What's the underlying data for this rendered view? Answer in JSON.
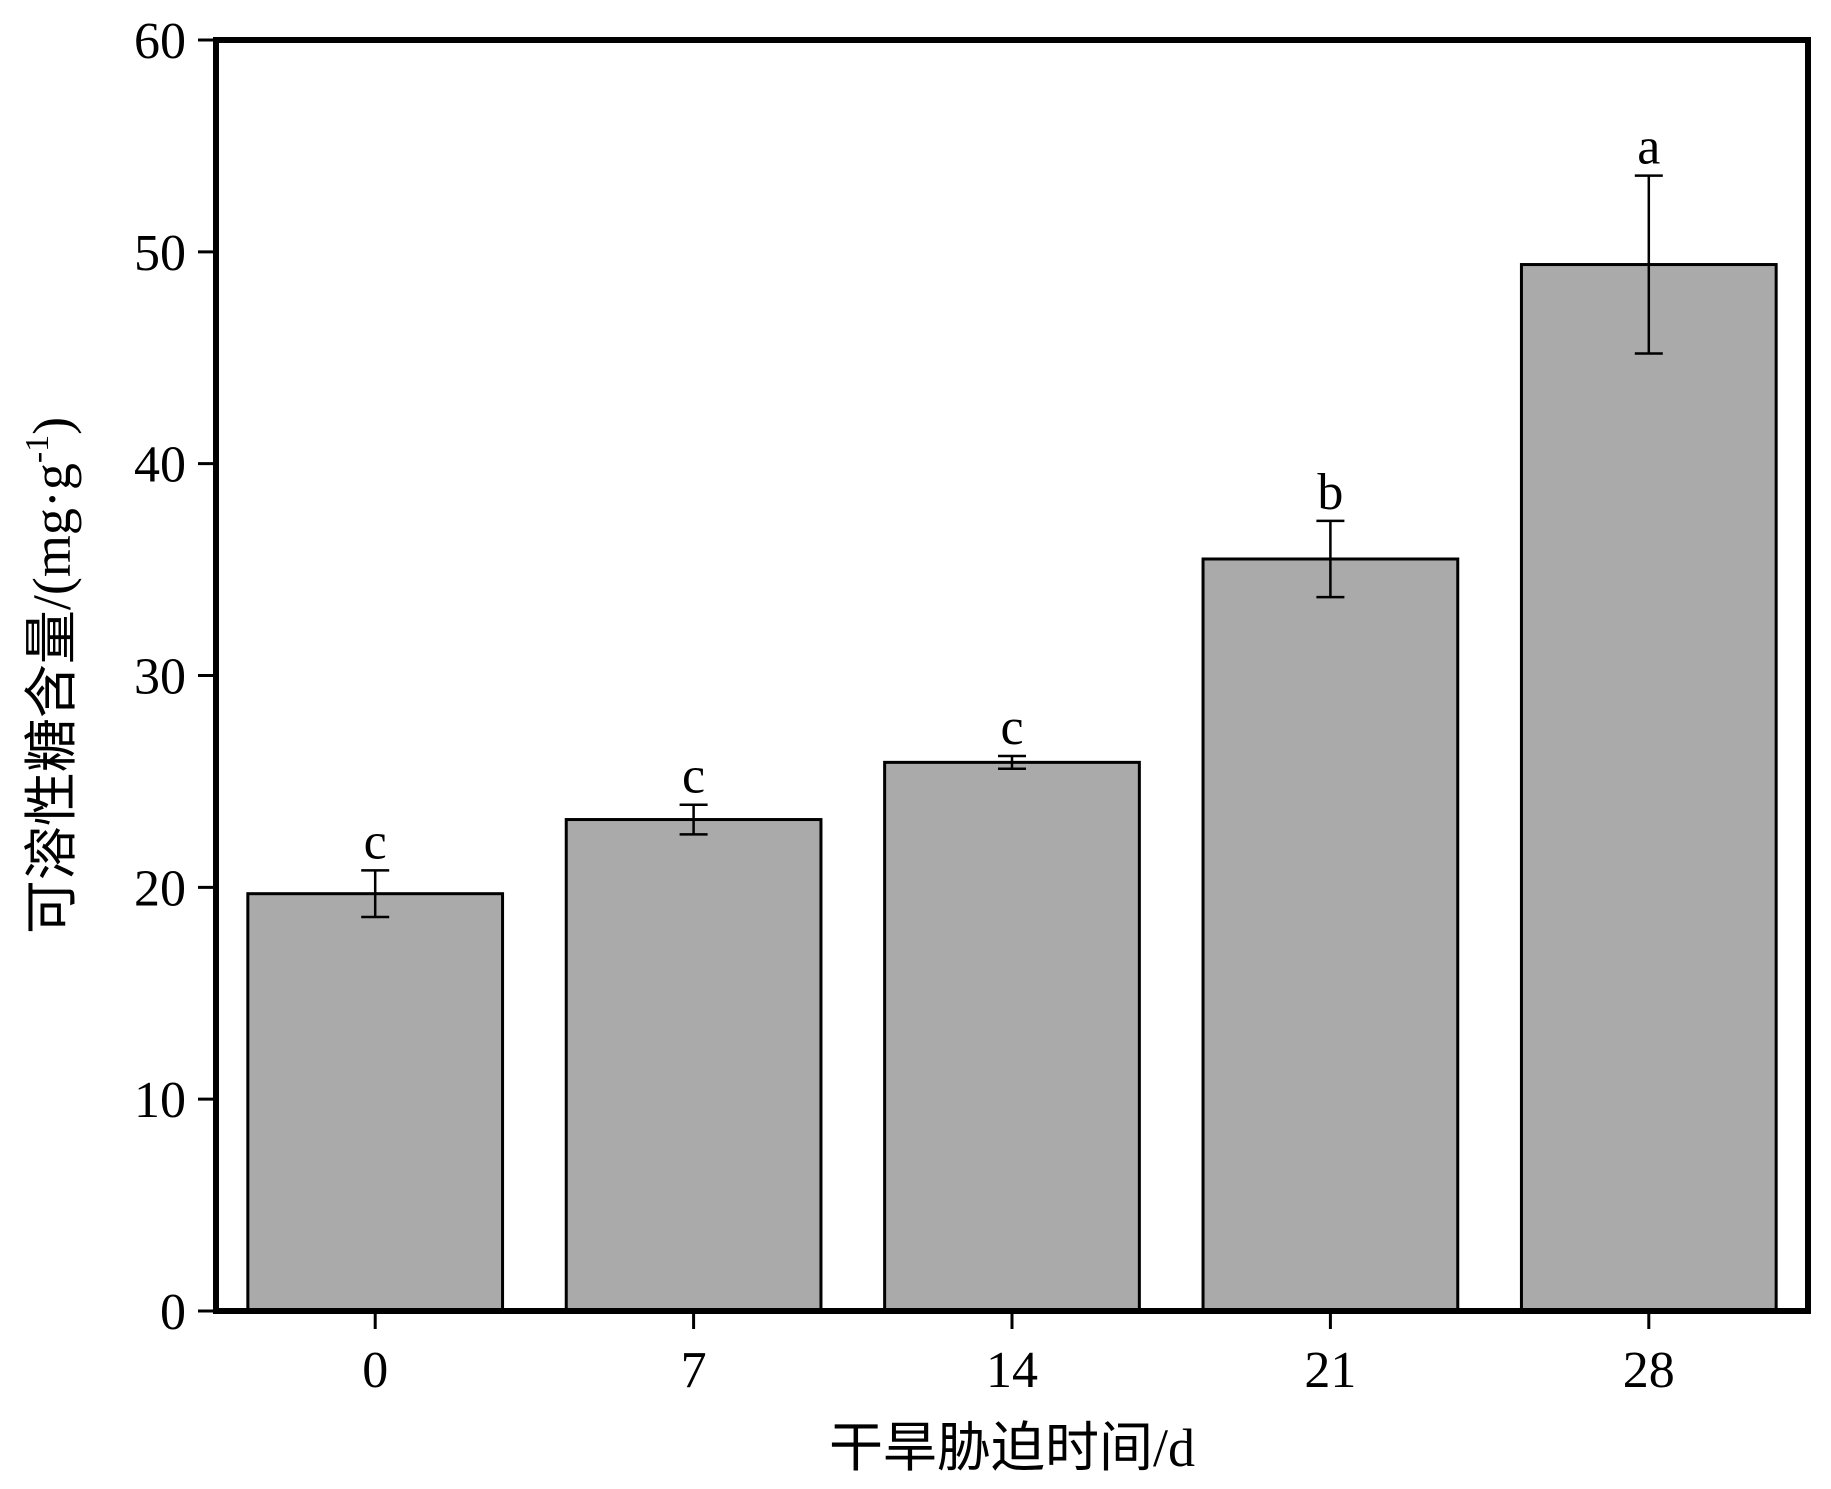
{
  "chart_data": {
    "type": "bar",
    "categories": [
      "0",
      "7",
      "14",
      "21",
      "28"
    ],
    "values": [
      19.7,
      23.2,
      25.9,
      35.5,
      49.4
    ],
    "errors": [
      1.1,
      0.7,
      0.3,
      1.8,
      4.2
    ],
    "significance": [
      "c",
      "c",
      "c",
      "b",
      "a"
    ],
    "xlabel": "干旱胁迫时间/d",
    "ylabel": "可溶性糖含量/(mg·g",
    "ylabel_sup": "-1",
    "ylabel_close": ")",
    "ylim": [
      0,
      60
    ],
    "yticks": [
      0,
      10,
      20,
      30,
      40,
      50,
      60
    ],
    "grid": false,
    "bar_color": "#aaaaaa",
    "edge_color": "#000000"
  }
}
